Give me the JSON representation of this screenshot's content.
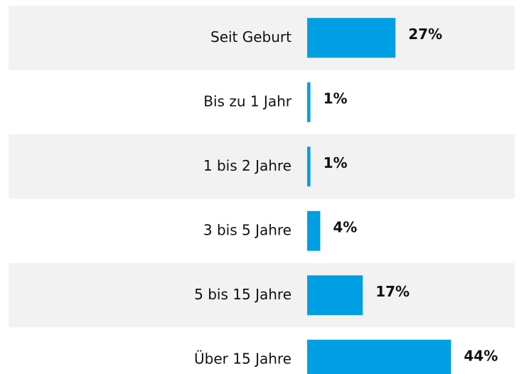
{
  "chart_data": {
    "type": "bar",
    "orientation": "horizontal",
    "categories": [
      "Seit Geburt",
      "Bis zu 1 Jahr",
      "1 bis 2 Jahre",
      "3 bis 5 Jahre",
      "5 bis 15 Jahre",
      "Über 15 Jahre"
    ],
    "values": [
      27,
      1,
      1,
      4,
      17,
      44
    ],
    "value_labels": [
      "27%",
      "1%",
      "1%",
      "4%",
      "17%",
      "44%"
    ],
    "color": "#009fe3"
  }
}
